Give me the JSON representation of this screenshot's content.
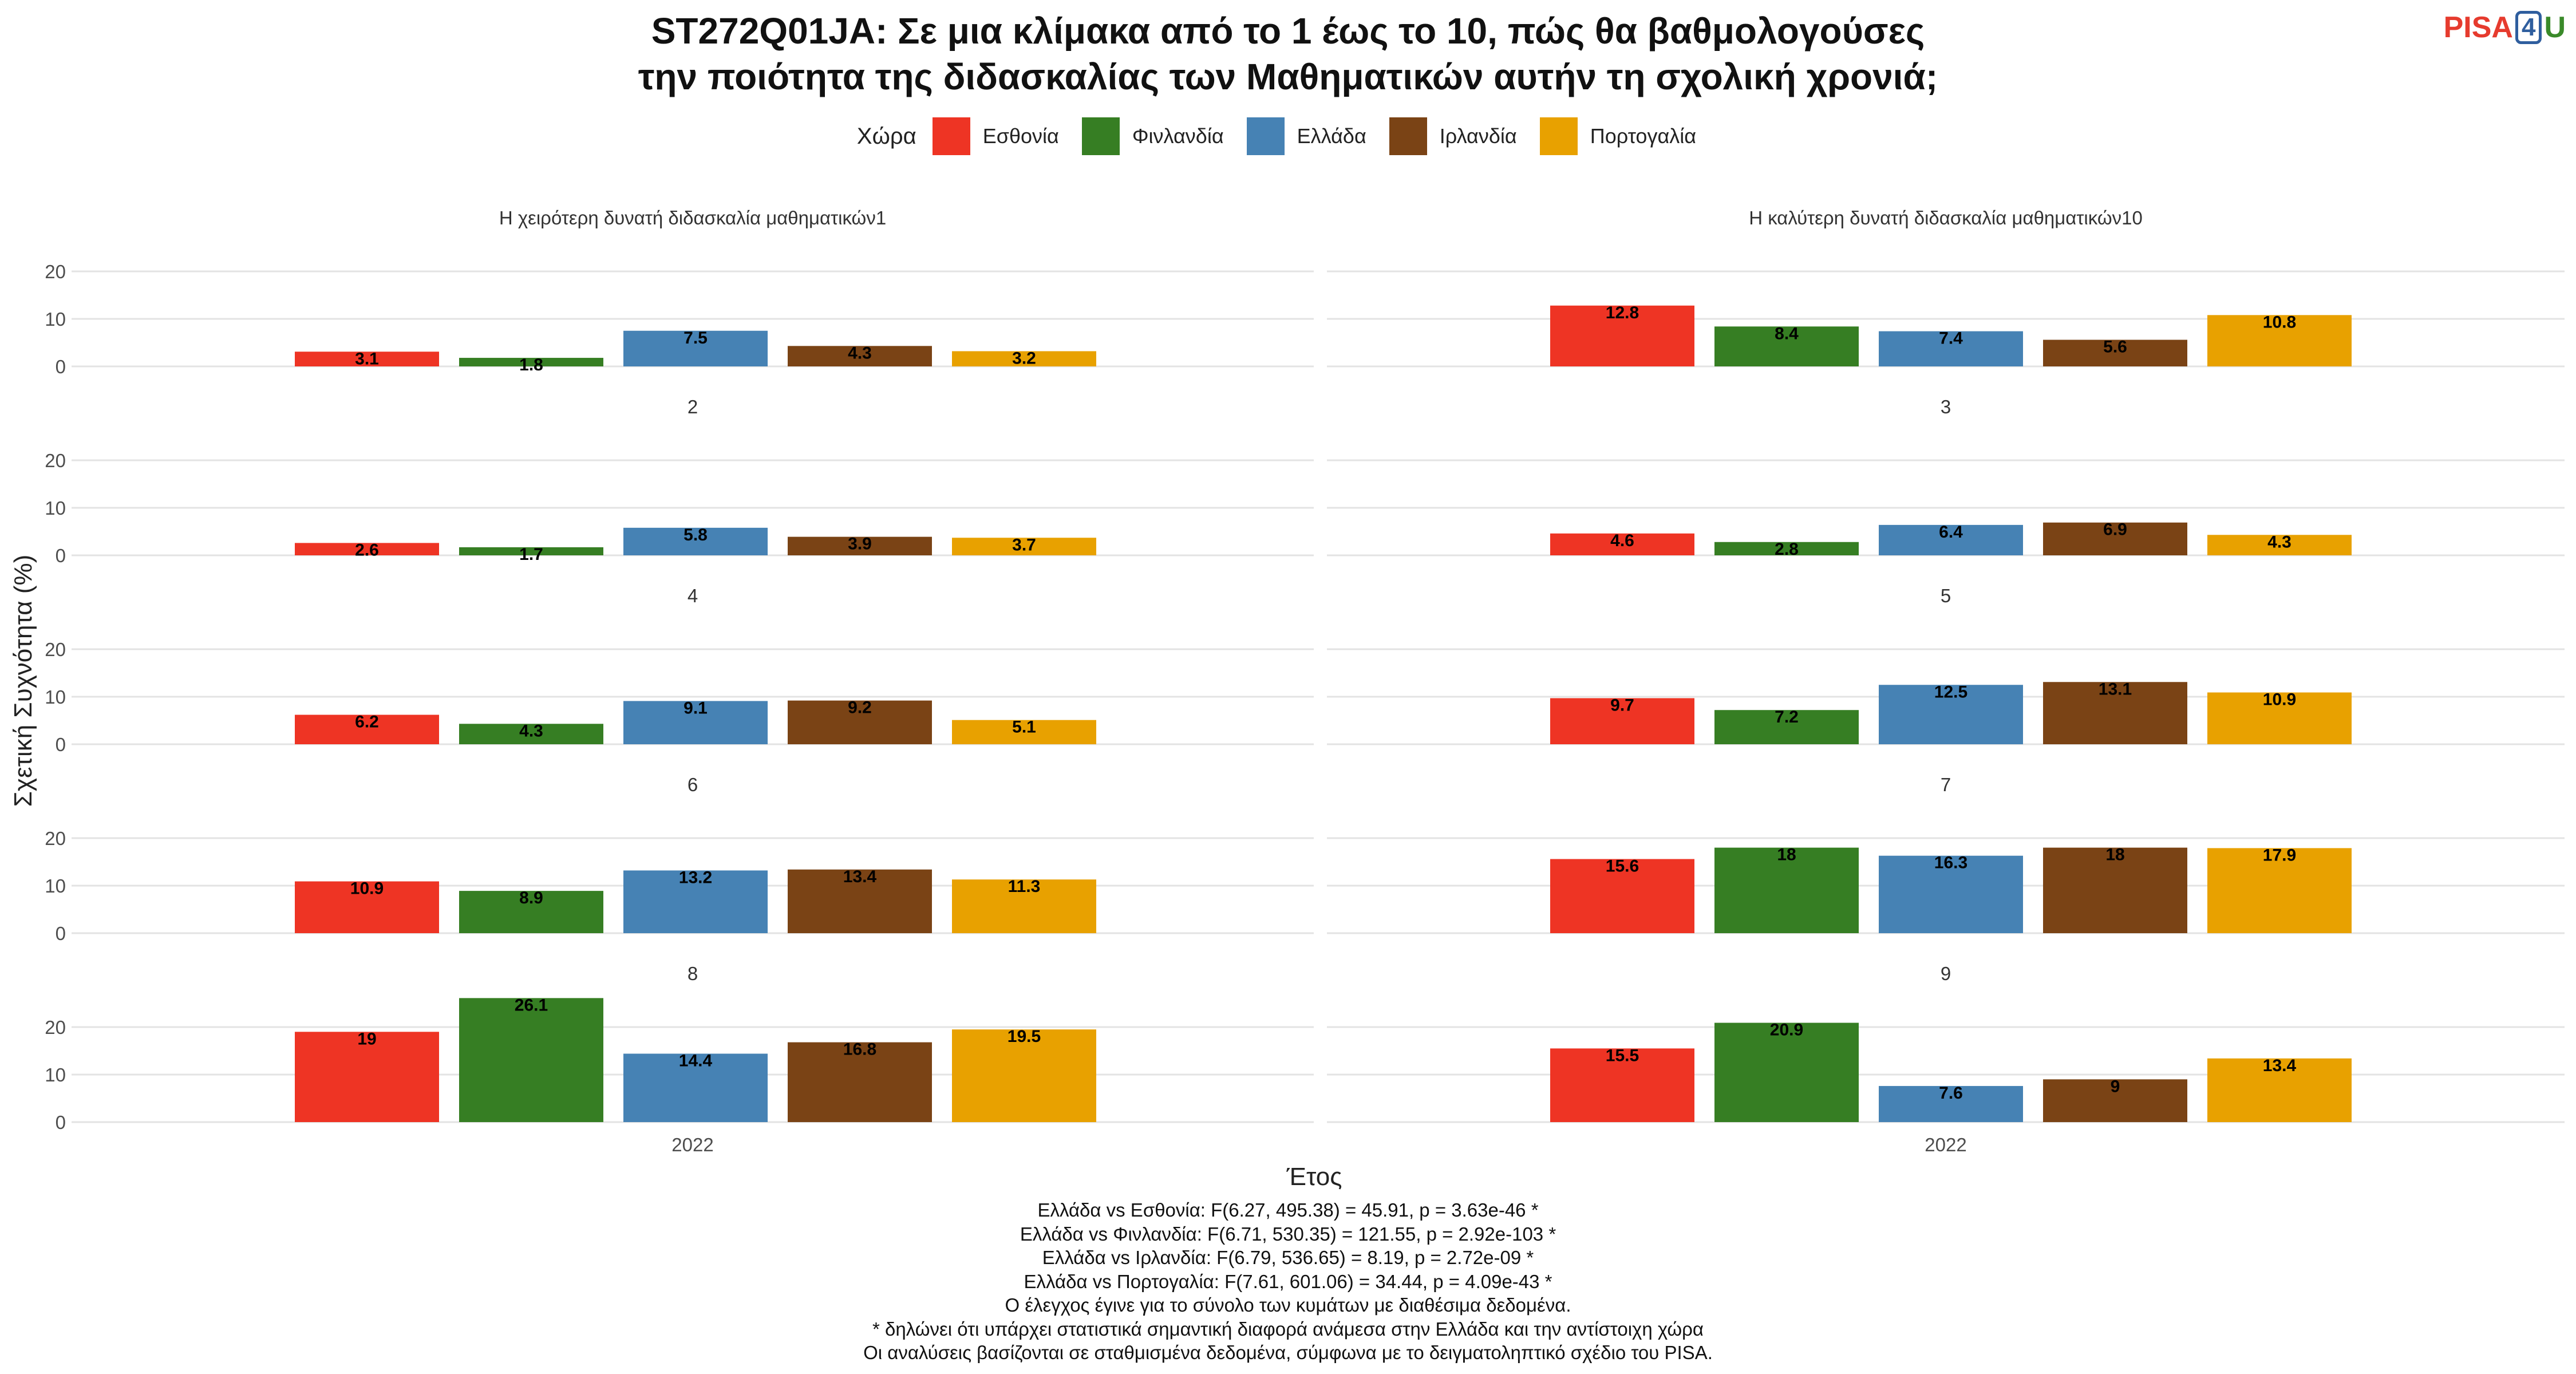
{
  "title_lines": [
    "ST272Q01JA: Σε μια κλίμακα από το 1 έως το 10, πώς θα βαθμολογούσες",
    "την ποιότητα της διδασκαλίας των Μαθηματικών αυτήν τη σχολική χρονιά;"
  ],
  "logo": {
    "part1": "PISA",
    "part2": "4",
    "part3": "U"
  },
  "legend": {
    "title": "Χώρα",
    "items": [
      {
        "label": "Εσθονία",
        "color": "#ee3424"
      },
      {
        "label": "Φινλανδία",
        "color": "#367e23"
      },
      {
        "label": "Ελλάδα",
        "color": "#4682b4"
      },
      {
        "label": "Ιρλανδία",
        "color": "#7a4315"
      },
      {
        "label": "Πορτογαλία",
        "color": "#e8a100"
      }
    ]
  },
  "chart_data": {
    "type": "bar",
    "xlabel": "Έτος",
    "ylabel": "Σχετική Συχνότητα (%)",
    "categories": [
      "2022"
    ],
    "ylim": [
      0,
      25
    ],
    "yticks": [
      0,
      10,
      20
    ],
    "grid": true,
    "legend_position": "top",
    "series_names": [
      "Εσθονία",
      "Φινλανδία",
      "Ελλάδα",
      "Ιρλανδία",
      "Πορτογαλία"
    ],
    "facets": [
      {
        "label": "Η χειρότερη δυνατή διδασκαλία μαθηματικών1",
        "values": [
          3.1,
          1.8,
          7.5,
          4.3,
          3.2
        ],
        "value_labels": [
          "3.1",
          "1.8",
          "7.5",
          "4.3",
          "3.2"
        ]
      },
      {
        "label": "Η καλύτερη δυνατή διδασκαλία μαθηματικών10",
        "values": [
          12.8,
          8.4,
          7.4,
          5.6,
          10.8
        ],
        "value_labels": [
          "12.8",
          "8.4",
          "7.4",
          "5.6",
          "10.8"
        ]
      },
      {
        "label": "2",
        "values": [
          2.6,
          1.7,
          5.8,
          3.9,
          3.7
        ],
        "value_labels": [
          "2.6",
          "1.7",
          "5.8",
          "3.9",
          "3.7"
        ]
      },
      {
        "label": "3",
        "values": [
          4.6,
          2.8,
          6.4,
          6.9,
          4.3
        ],
        "value_labels": [
          "4.6",
          "2.8",
          "6.4",
          "6.9",
          "4.3"
        ]
      },
      {
        "label": "4",
        "values": [
          6.2,
          4.3,
          9.1,
          9.2,
          5.1
        ],
        "value_labels": [
          "6.2",
          "4.3",
          "9.1",
          "9.2",
          "5.1"
        ]
      },
      {
        "label": "5",
        "values": [
          9.7,
          7.2,
          12.5,
          13.1,
          10.9
        ],
        "value_labels": [
          "9.7",
          "7.2",
          "12.5",
          "13.1",
          "10.9"
        ]
      },
      {
        "label": "6",
        "values": [
          10.9,
          8.9,
          13.2,
          13.4,
          11.3
        ],
        "value_labels": [
          "10.9",
          "8.9",
          "13.2",
          "13.4",
          "11.3"
        ]
      },
      {
        "label": "7",
        "values": [
          15.6,
          18,
          16.3,
          18,
          17.9
        ],
        "value_labels": [
          "15.6",
          "18",
          "16.3",
          "18",
          "17.9"
        ]
      },
      {
        "label": "8",
        "values": [
          19,
          26.1,
          14.4,
          16.8,
          19.5
        ],
        "value_labels": [
          "19",
          "26.1",
          "14.4",
          "16.8",
          "19.5"
        ]
      },
      {
        "label": "9",
        "values": [
          15.5,
          20.9,
          7.6,
          9,
          13.4
        ],
        "value_labels": [
          "15.5",
          "20.9",
          "7.6",
          "9",
          "13.4"
        ]
      }
    ]
  },
  "caption_lines": [
    "Ελλάδα vs Εσθονία: F(6.27, 495.38) = 45.91, p = 3.63e-46 *",
    "Ελλάδα vs Φινλανδία: F(6.71, 530.35) = 121.55, p = 2.92e-103 *",
    "Ελλάδα vs Ιρλανδία: F(6.79, 536.65) = 8.19, p = 2.72e-09 *",
    "Ελλάδα vs Πορτογαλία: F(7.61, 601.06) = 34.44, p = 4.09e-43 *",
    "Ο έλεγχος έγινε για το σύνολο των κυμάτων με διαθέσιμα δεδομένα.",
    "* δηλώνει ότι υπάρχει στατιστικά σημαντική διαφορά ανάμεσα στην Ελλάδα και την αντίστοιχη χώρα",
    "Οι αναλύσεις βασίζονται σε σταθμισμένα δεδομένα, σύμφωνα με το δειγματοληπτικό σχέδιο του PISA."
  ]
}
